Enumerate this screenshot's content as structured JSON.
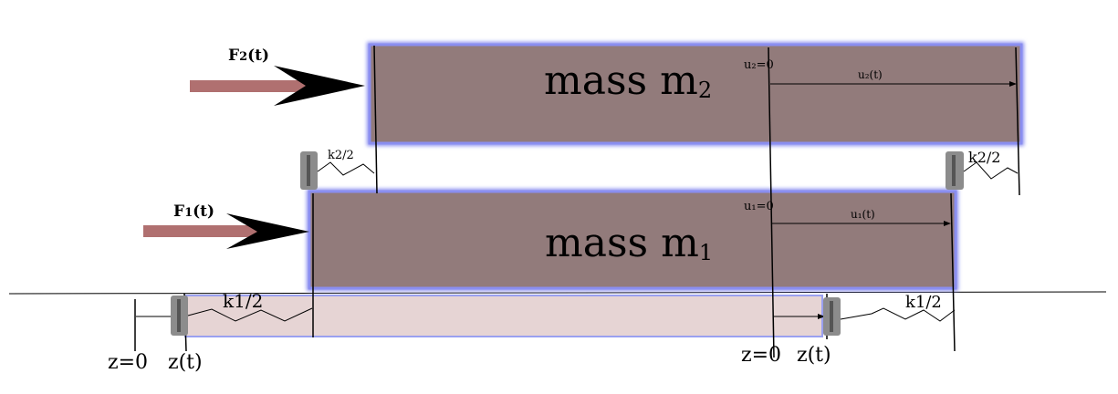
{
  "diagram": {
    "masses": {
      "m2": {
        "label": "mass m",
        "sub": "2"
      },
      "m1": {
        "label": "mass m",
        "sub": "1"
      }
    },
    "forces": {
      "f2": {
        "label": "F",
        "sub": "2",
        "suffix": "(t)"
      },
      "f1": {
        "label": "F",
        "sub": "1",
        "suffix": "(t)"
      }
    },
    "springs": {
      "k2_left": "k2/2",
      "k2_right": "k2/2",
      "k1_left": "k1/2",
      "k1_right": "k1/2"
    },
    "displacements": {
      "u2_zero": "u₂=0",
      "u2_t": "u₂(t)",
      "u1_zero": "u₁=0",
      "u1_t": "u₁(t)"
    },
    "ground": {
      "z0_left": "z=0",
      "zt_left": "z(t)",
      "z0_right": "z=0",
      "zt_right": "z(t)"
    },
    "colors": {
      "mass_fill": "#927b7b",
      "mass_border": "#8a8ef0",
      "base_fill": "#e6d4d4",
      "arrow_shaft": "#b07070",
      "arrow_head": "#000000",
      "damper": "#8c8c8c"
    }
  }
}
